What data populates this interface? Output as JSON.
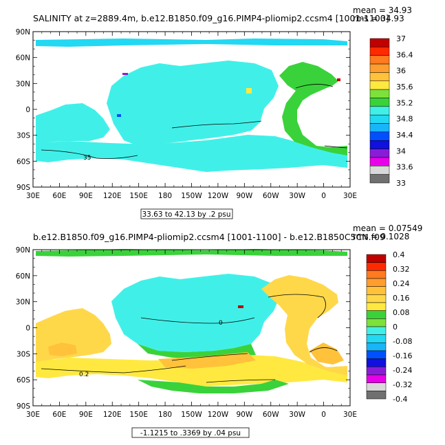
{
  "chart_data": [
    {
      "type": "heatmap",
      "title": "SALINITY at z=2889.4m, b.e12.B1850.f09_g16.PIMP4-pliomip2.ccsm4 [1001-1100]",
      "stats": {
        "mean": "mean = 34.93",
        "rms": "rms = 34.93"
      },
      "x_ticks": [
        "30E",
        "60E",
        "90E",
        "120E",
        "150E",
        "180",
        "150W",
        "120W",
        "90W",
        "60W",
        "30W",
        "0",
        "30E"
      ],
      "y_ticks": [
        "90N",
        "60N",
        "30N",
        "0",
        "30S",
        "60S",
        "90S"
      ],
      "range_label": "33.63 to 42.13 by .2 psu",
      "contour_labels": [
        "35"
      ],
      "colorbar": {
        "labels": [
          "37",
          "36.4",
          "36",
          "35.6",
          "35.2",
          "34.8",
          "34.4",
          "34",
          "33.6",
          "33"
        ],
        "colors": [
          "#c00000",
          "#ff2a00",
          "#ff7a20",
          "#ff9d2e",
          "#ffc23a",
          "#ffe940",
          "#7ee03a",
          "#3ad23a",
          "#40f0e8",
          "#22d8f2",
          "#18b6f8",
          "#0050ff",
          "#1010e0",
          "#8a1cd8",
          "#e800e8",
          "#d8d8d8",
          "#707070"
        ]
      }
    },
    {
      "type": "heatmap",
      "title": "b.e12.B1850.f09_g16.PIMP4-pliomip2.ccsm4 [1001-1100] - b.e12.B1850C5CN.f09",
      "stats": {
        "mean": "mean = 0.07549",
        "rms": "rms = 0.1028"
      },
      "x_ticks": [
        "30E",
        "60E",
        "90E",
        "120E",
        "150E",
        "180",
        "150W",
        "120W",
        "90W",
        "60W",
        "30W",
        "0",
        "30E"
      ],
      "y_ticks": [
        "90N",
        "60N",
        "30N",
        "0",
        "30S",
        "60S",
        "90S"
      ],
      "range_label": "-1.1215 to .3369 by .04 psu",
      "contour_labels": [
        "0",
        "0.2"
      ],
      "colorbar": {
        "labels": [
          "0.4",
          "0.32",
          "0.24",
          "0.16",
          "0.08",
          "0",
          "-0.08",
          "-0.16",
          "-0.24",
          "-0.32",
          "-0.4"
        ],
        "colors": [
          "#c00000",
          "#ff2a00",
          "#ff7a20",
          "#ff9d2e",
          "#ffc23a",
          "#ffd84a",
          "#ffe940",
          "#3ad23a",
          "#7ee03a",
          "#40f0e8",
          "#22d8f2",
          "#18b6f8",
          "#0050ff",
          "#1010e0",
          "#8a1cd8",
          "#e800e8",
          "#d8d8d8",
          "#707070"
        ]
      }
    }
  ]
}
